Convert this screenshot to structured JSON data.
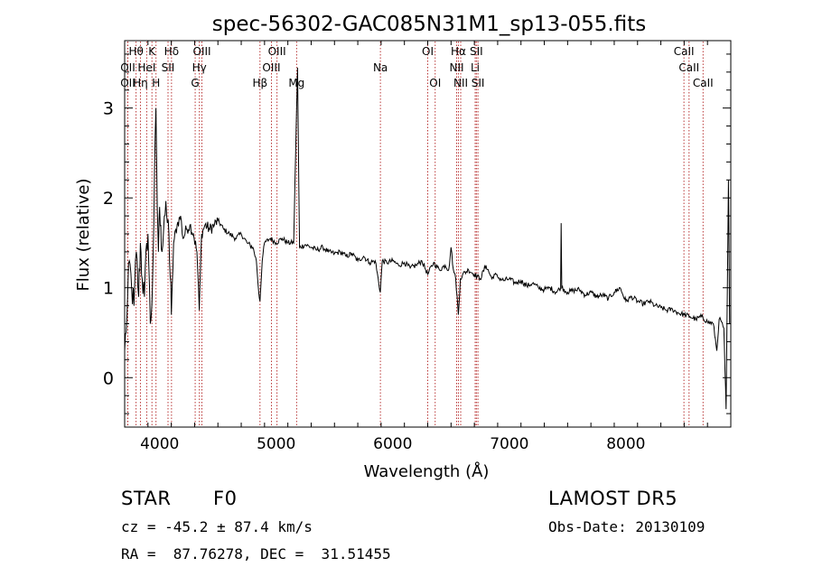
{
  "chart_data": {
    "type": "line",
    "title": "spec-56302-GAC085N31M1_sp13-055.fits",
    "xlabel": "Wavelength (Å)",
    "ylabel": "Flux (relative)",
    "xlim": [
      3700,
      8900
    ],
    "ylim": [
      -0.55,
      3.75
    ],
    "x_ticks": [
      4000,
      5000,
      6000,
      7000,
      8000
    ],
    "y_ticks": [
      0,
      1,
      2,
      3
    ],
    "grid": false,
    "series": [
      {
        "x": [
          3700,
          3720,
          3740,
          3760,
          3780,
          3800,
          3820,
          3835,
          3850,
          3870,
          3889,
          3900,
          3920,
          3933,
          3950,
          3968,
          3980,
          3990,
          4000,
          4010,
          4020,
          4040,
          4060,
          4080,
          4101,
          4120,
          4150,
          4180,
          4200,
          4230,
          4260,
          4290,
          4320,
          4340,
          4360,
          4390,
          4430,
          4470,
          4500,
          4550,
          4600,
          4650,
          4700,
          4750,
          4800,
          4830,
          4850,
          4861,
          4880,
          4900,
          4950,
          5000,
          5050,
          5100,
          5150,
          5183,
          5200,
          5250,
          5300,
          5350,
          5400,
          5450,
          5500,
          5550,
          5600,
          5650,
          5700,
          5750,
          5800,
          5850,
          5893,
          5910,
          5950,
          6000,
          6050,
          6100,
          6150,
          6200,
          6250,
          6300,
          6350,
          6400,
          6450,
          6480,
          6500,
          6520,
          6540,
          6563,
          6580,
          6600,
          6650,
          6700,
          6750,
          6800,
          6850,
          6870,
          6900,
          6950,
          7000,
          7050,
          7100,
          7150,
          7200,
          7250,
          7300,
          7350,
          7400,
          7440,
          7445,
          7450,
          7500,
          7550,
          7600,
          7650,
          7700,
          7750,
          7800,
          7850,
          7900,
          7950,
          8000,
          8050,
          8100,
          8150,
          8200,
          8250,
          8300,
          8350,
          8400,
          8450,
          8500,
          8550,
          8600,
          8650,
          8700,
          8750,
          8780,
          8800,
          8820,
          8840,
          8850,
          8860,
          8880,
          8890
        ],
        "y": [
          0.3,
          0.7,
          1.3,
          1.0,
          0.8,
          1.4,
          0.9,
          1.5,
          1.1,
          0.9,
          1.5,
          1.6,
          0.6,
          0.8,
          1.7,
          3.0,
          1.9,
          1.4,
          1.9,
          1.7,
          1.4,
          1.8,
          1.8,
          1.6,
          0.7,
          1.5,
          1.7,
          1.8,
          1.55,
          1.65,
          1.7,
          1.6,
          1.4,
          0.75,
          1.6,
          1.7,
          1.65,
          1.7,
          1.75,
          1.65,
          1.6,
          1.55,
          1.6,
          1.5,
          1.45,
          1.3,
          0.95,
          0.85,
          1.3,
          1.5,
          1.55,
          1.5,
          1.55,
          1.5,
          1.5,
          3.45,
          1.45,
          1.48,
          1.45,
          1.42,
          1.45,
          1.4,
          1.38,
          1.4,
          1.35,
          1.38,
          1.3,
          1.35,
          1.28,
          1.3,
          0.95,
          1.3,
          1.28,
          1.3,
          1.25,
          1.28,
          1.22,
          1.25,
          1.3,
          1.15,
          1.28,
          1.2,
          1.25,
          1.2,
          1.45,
          1.2,
          1.1,
          0.7,
          1.1,
          1.15,
          1.2,
          1.15,
          1.1,
          1.25,
          1.1,
          1.15,
          1.12,
          1.08,
          1.1,
          1.05,
          1.08,
          1.02,
          1.05,
          1.0,
          0.98,
          1.0,
          0.95,
          1.0,
          1.72,
          1.0,
          0.95,
          0.97,
          0.98,
          0.92,
          0.95,
          0.9,
          0.92,
          0.88,
          0.95,
          1.0,
          0.85,
          0.9,
          0.85,
          0.82,
          0.85,
          0.8,
          0.78,
          0.75,
          0.76,
          0.72,
          0.7,
          0.68,
          0.65,
          0.68,
          0.62,
          0.6,
          0.3,
          0.65,
          0.62,
          0.55,
          0.1,
          -0.35,
          2.2,
          0.6
        ]
      }
    ],
    "lines": [
      {
        "label": "OII",
        "x": 3727,
        "row": 1
      },
      {
        "label": "Hθ",
        "x": 3798,
        "row": 0
      },
      {
        "label": "OII",
        "x": 3727,
        "row": 2
      },
      {
        "label": "Hη",
        "x": 3835,
        "row": 2
      },
      {
        "label": "HeI",
        "x": 3889,
        "row": 1
      },
      {
        "label": "K",
        "x": 3934,
        "row": 0
      },
      {
        "label": "H",
        "x": 3969,
        "row": 2
      },
      {
        "label": "Hδ",
        "x": 4102,
        "row": 0
      },
      {
        "label": "SII",
        "x": 4072,
        "row": 1
      },
      {
        "label": "G",
        "x": 4305,
        "row": 2
      },
      {
        "label": "Hγ",
        "x": 4341,
        "row": 1
      },
      {
        "label": "OIII",
        "x": 4363,
        "row": 0
      },
      {
        "label": "Hβ",
        "x": 4861,
        "row": 2
      },
      {
        "label": "OIII",
        "x": 4959,
        "row": 1
      },
      {
        "label": "OIII",
        "x": 5007,
        "row": 0
      },
      {
        "label": "Mg",
        "x": 5175,
        "row": 2
      },
      {
        "label": "Na",
        "x": 5894,
        "row": 1
      },
      {
        "label": "OI",
        "x": 6300,
        "row": 0
      },
      {
        "label": "OI",
        "x": 6364,
        "row": 2
      },
      {
        "label": "Hα",
        "x": 6563,
        "row": 0
      },
      {
        "label": "NII",
        "x": 6548,
        "row": 1
      },
      {
        "label": "NII",
        "x": 6583,
        "row": 2
      },
      {
        "label": "SII",
        "x": 6717,
        "row": 0
      },
      {
        "label": "Li",
        "x": 6707,
        "row": 1
      },
      {
        "label": "SII",
        "x": 6731,
        "row": 2
      },
      {
        "label": "CaII",
        "x": 8498,
        "row": 0
      },
      {
        "label": "CaII",
        "x": 8542,
        "row": 1
      },
      {
        "label": "CaII",
        "x": 8662,
        "row": 2
      }
    ]
  },
  "info": {
    "class_label": "STAR",
    "subclass": "F0",
    "survey": "LAMOST DR5",
    "cz": "cz = -45.2 ± 87.4 km/s",
    "obs_date": "Obs-Date: 20130109",
    "coords": "RA =  87.76278, DEC =  31.51455"
  }
}
